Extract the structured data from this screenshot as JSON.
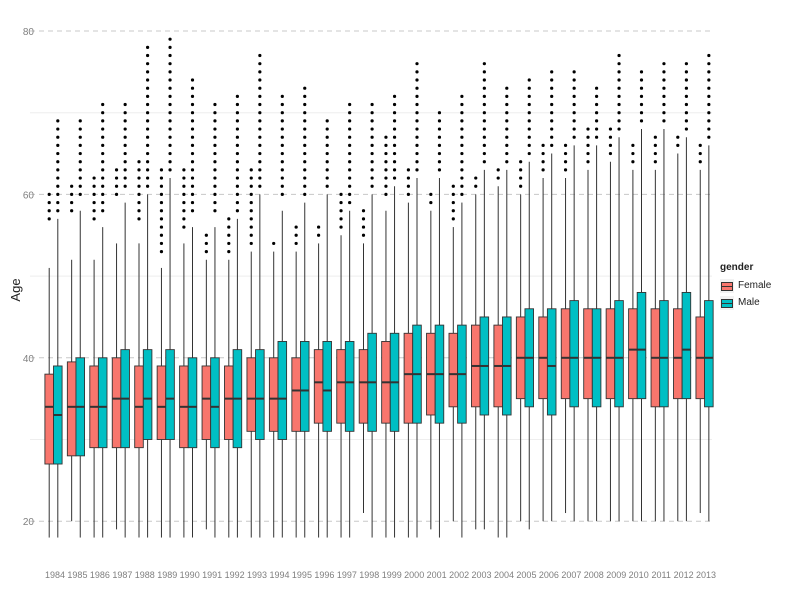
{
  "chart_data": {
    "type": "boxplot",
    "ylabel": "Age",
    "xlabel": "",
    "ylim": [
      16,
      82
    ],
    "yticks": [
      20,
      40,
      60,
      80
    ],
    "grid": true,
    "legend": {
      "title": "gender",
      "position": "right",
      "entries": [
        "Female",
        "Male"
      ]
    },
    "colors": {
      "Female": "#f8766d",
      "Male": "#00bfc4"
    },
    "categories": [
      "1984",
      "1985",
      "1986",
      "1987",
      "1988",
      "1989",
      "1990",
      "1991",
      "1992",
      "1993",
      "1994",
      "1995",
      "1996",
      "1997",
      "1998",
      "1999",
      "2000",
      "2001",
      "2002",
      "2003",
      "2004",
      "2005",
      "2006",
      "2007",
      "2008",
      "2009",
      "2010",
      "2011",
      "2012",
      "2013"
    ],
    "series": [
      {
        "name": "Female",
        "boxes": [
          [
            18,
            27,
            34,
            38,
            51,
            [
              57,
              60
            ]
          ],
          [
            20,
            28,
            34,
            39.5,
            52,
            [
              58,
              61
            ]
          ],
          [
            18,
            29,
            34,
            39,
            52,
            [
              57,
              62
            ]
          ],
          [
            19,
            29,
            35,
            40,
            54,
            [
              60,
              63
            ]
          ],
          [
            18,
            29,
            34,
            39,
            54,
            [
              57,
              64
            ]
          ],
          [
            18,
            30,
            34,
            39,
            51,
            [
              53,
              63
            ]
          ],
          [
            18,
            29,
            34,
            39,
            54,
            [
              56,
              63
            ]
          ],
          [
            19,
            30,
            35,
            39,
            52,
            [
              53,
              55
            ]
          ],
          [
            18,
            30,
            35,
            39,
            52,
            [
              53,
              57
            ]
          ],
          [
            18,
            31,
            35,
            40,
            53,
            [
              54,
              63
            ]
          ],
          [
            18,
            31,
            35,
            40,
            53,
            [
              54,
              54
            ]
          ],
          [
            18,
            31,
            36,
            40,
            53,
            [
              54,
              56
            ]
          ],
          [
            18,
            32,
            37,
            41,
            54,
            [
              55,
              56
            ]
          ],
          [
            18,
            32,
            37,
            41,
            55,
            [
              56,
              60
            ]
          ],
          [
            21,
            32,
            37,
            41,
            54,
            [
              55,
              58
            ]
          ],
          [
            18,
            32,
            37,
            42,
            58,
            [
              60,
              67
            ]
          ],
          [
            18,
            32,
            38,
            43,
            59,
            [
              60,
              63
            ]
          ],
          [
            19,
            33,
            38,
            43,
            58,
            [
              59,
              60
            ]
          ],
          [
            20,
            34,
            38,
            43,
            56,
            [
              57,
              61
            ]
          ],
          [
            19,
            34,
            39,
            44,
            60,
            [
              61,
              62
            ]
          ],
          [
            18,
            34,
            39,
            44,
            61,
            [
              62,
              63
            ]
          ],
          [
            20,
            35,
            40,
            45,
            60,
            [
              61,
              64
            ]
          ],
          [
            20,
            35,
            40,
            45,
            62,
            [
              63,
              66
            ]
          ],
          [
            21,
            35,
            40,
            46,
            62,
            [
              63,
              66
            ]
          ],
          [
            20,
            35,
            40,
            46,
            63,
            [
              64,
              68
            ]
          ],
          [
            20,
            35,
            40,
            46,
            64,
            [
              65,
              68
            ]
          ],
          [
            20,
            35,
            41,
            46,
            63,
            [
              64,
              66
            ]
          ],
          [
            20,
            34,
            40,
            46,
            63,
            [
              64,
              67
            ]
          ],
          [
            20,
            35,
            40,
            46,
            65,
            [
              66,
              67
            ]
          ],
          [
            21,
            35,
            40,
            45,
            63,
            [
              64,
              66
            ]
          ]
        ]
      },
      {
        "name": "Male",
        "boxes": [
          [
            18,
            27,
            33,
            39,
            57,
            [
              58,
              69
            ]
          ],
          [
            18,
            28,
            34,
            40,
            58,
            [
              60,
              69
            ]
          ],
          [
            18,
            29,
            34,
            40,
            56,
            [
              58,
              71
            ]
          ],
          [
            18,
            29,
            35,
            41,
            59,
            [
              61,
              71
            ]
          ],
          [
            18,
            30,
            35,
            41,
            60,
            [
              61,
              78
            ]
          ],
          [
            18,
            30,
            35,
            41,
            62,
            [
              63,
              79
            ]
          ],
          [
            18,
            29,
            34,
            40,
            56,
            [
              58,
              74
            ]
          ],
          [
            18,
            29,
            34,
            40,
            56,
            [
              58,
              71
            ]
          ],
          [
            18,
            29,
            35,
            41,
            57,
            [
              58,
              72
            ]
          ],
          [
            18,
            30,
            35,
            41,
            60,
            [
              61,
              77
            ]
          ],
          [
            18,
            30,
            35,
            42,
            58,
            [
              60,
              72
            ]
          ],
          [
            18,
            31,
            36,
            42,
            59,
            [
              60,
              73
            ]
          ],
          [
            18,
            31,
            36,
            42,
            60,
            [
              61,
              69
            ]
          ],
          [
            18,
            31,
            37,
            42,
            58,
            [
              59,
              71
            ]
          ],
          [
            18,
            31,
            37,
            43,
            60,
            [
              61,
              71
            ]
          ],
          [
            18,
            31,
            37,
            43,
            61,
            [
              62,
              72
            ]
          ],
          [
            18,
            32,
            38,
            44,
            62,
            [
              63,
              76
            ]
          ],
          [
            18,
            32,
            38,
            44,
            62,
            [
              63,
              70
            ]
          ],
          [
            18,
            32,
            38,
            44,
            59,
            [
              60,
              72
            ]
          ],
          [
            19,
            33,
            39,
            45,
            63,
            [
              64,
              76
            ]
          ],
          [
            18,
            33,
            39,
            45,
            63,
            [
              64,
              73
            ]
          ],
          [
            19,
            34,
            40,
            46,
            64,
            [
              65,
              74
            ]
          ],
          [
            20,
            33,
            39,
            46,
            65,
            [
              66,
              75
            ]
          ],
          [
            20,
            34,
            40,
            47,
            66,
            [
              67,
              75
            ]
          ],
          [
            20,
            34,
            40,
            46,
            66,
            [
              67,
              73
            ]
          ],
          [
            20,
            34,
            40,
            47,
            67,
            [
              68,
              77
            ]
          ],
          [
            20,
            35,
            41,
            48,
            68,
            [
              69,
              75
            ]
          ],
          [
            20,
            34,
            40,
            47,
            68,
            [
              69,
              76
            ]
          ],
          [
            20,
            35,
            41,
            48,
            67,
            [
              68,
              76
            ]
          ],
          [
            20,
            34,
            40,
            47,
            66,
            [
              67,
              77
            ]
          ]
        ]
      }
    ]
  }
}
